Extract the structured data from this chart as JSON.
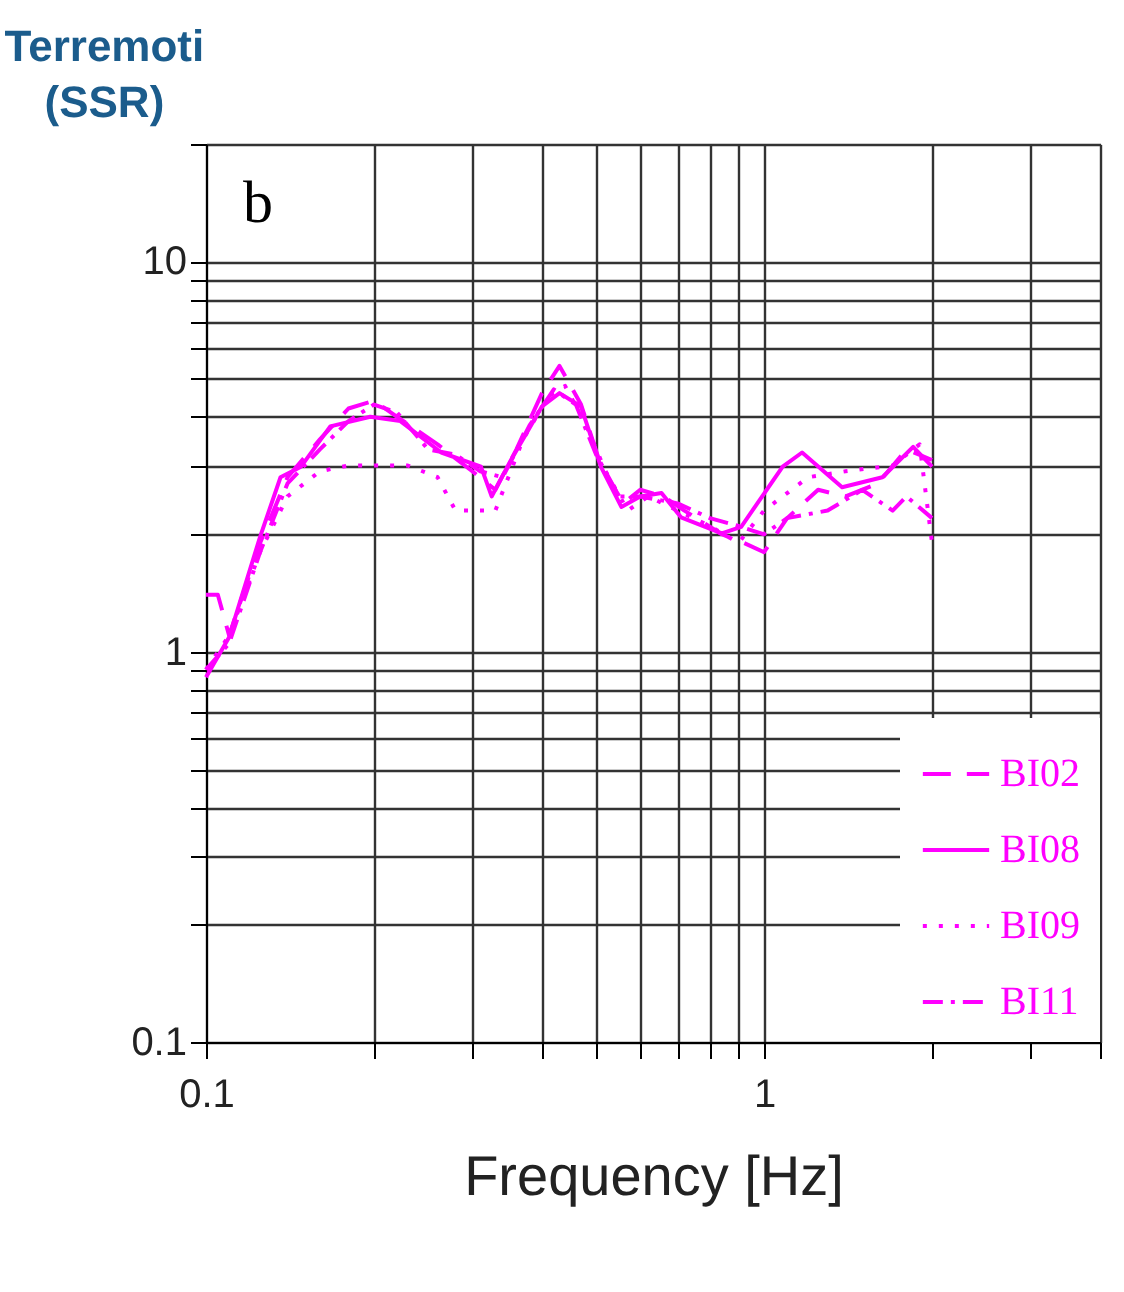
{
  "chart_data": {
    "type": "line",
    "title": "Terremoti (SSR)",
    "xlabel": "Frequency [Hz]",
    "annotations": [
      "b"
    ],
    "log": "xy",
    "grid": true,
    "legend": "bottom right",
    "xlim": [
      0.1,
      4
    ],
    "ylim": [
      0.1,
      20
    ],
    "xticks": [
      0.1,
      {
        "value": 0.2,
        "label": null
      },
      {
        "value": 0.3,
        "label": null
      },
      {
        "value": 0.4,
        "label": null
      },
      {
        "value": 0.5,
        "label": null
      },
      {
        "value": 0.6,
        "label": null
      },
      {
        "value": 0.7,
        "label": null
      },
      {
        "value": 0.8,
        "label": null
      },
      {
        "value": 0.9,
        "label": null
      },
      1,
      {
        "value": 2,
        "label": null
      },
      {
        "value": 3,
        "label": null
      },
      {
        "value": 4,
        "label": null
      }
    ],
    "yticks": [
      0.1,
      {
        "value": 0.2,
        "label": null
      },
      {
        "value": 0.3,
        "label": null
      },
      {
        "value": 0.4,
        "label": null
      },
      {
        "value": 0.5,
        "label": null
      },
      {
        "value": 0.6,
        "label": null
      },
      {
        "value": 0.7,
        "label": null
      },
      {
        "value": 0.8,
        "label": null
      },
      {
        "value": 0.9,
        "label": null
      },
      1,
      {
        "value": 2,
        "label": null
      },
      {
        "value": 3,
        "label": null
      },
      {
        "value": 4,
        "label": null
      },
      {
        "value": 5,
        "label": null
      },
      {
        "value": 6,
        "label": null
      },
      {
        "value": 7,
        "label": null
      },
      {
        "value": 8,
        "label": null
      },
      {
        "value": 9,
        "label": null
      },
      10,
      {
        "value": 20,
        "label": null
      }
    ],
    "series": [
      {
        "name": "BI02",
        "color": "#ff00ff",
        "line_style": "dashed",
        "x": [
          0.1,
          0.105,
          0.11,
          0.125,
          0.14,
          0.16,
          0.18,
          0.2,
          0.22,
          0.26,
          0.3,
          0.33,
          0.36,
          0.4,
          0.43,
          0.47,
          0.51,
          0.56,
          0.6,
          0.66,
          0.72,
          0.84,
          0.92,
          1.0,
          1.1,
          1.25,
          1.4,
          1.6,
          1.8,
          2.0
        ],
        "values": [
          1.4,
          1.4,
          1.1,
          1.9,
          2.8,
          3.5,
          4.2,
          4.4,
          4.0,
          3.4,
          2.9,
          2.6,
          3.3,
          4.6,
          5.4,
          4.3,
          3.0,
          2.4,
          2.6,
          2.5,
          2.3,
          2.0,
          1.9,
          1.8,
          2.2,
          2.6,
          2.5,
          2.7,
          3.3,
          3.1
        ]
      },
      {
        "name": "BI08",
        "color": "#ff00ff",
        "line_style": "solid",
        "x": [
          0.1,
          0.11,
          0.125,
          0.136,
          0.148,
          0.167,
          0.197,
          0.223,
          0.264,
          0.311,
          0.325,
          0.352,
          0.4,
          0.43,
          0.47,
          0.51,
          0.555,
          0.6,
          0.655,
          0.71,
          0.84,
          0.91,
          1.08,
          1.17,
          1.38,
          1.63,
          1.85,
          2.0
        ],
        "values": [
          0.86,
          1.09,
          1.97,
          2.8,
          2.98,
          3.78,
          4.0,
          3.9,
          3.24,
          2.98,
          2.5,
          3.1,
          4.25,
          4.6,
          4.25,
          2.98,
          2.35,
          2.5,
          2.55,
          2.21,
          2.01,
          2.09,
          2.98,
          3.24,
          2.64,
          2.8,
          3.35,
          2.98
        ]
      },
      {
        "name": "BI09",
        "color": "#ff00ff",
        "line_style": "dotted",
        "x": [
          0.1,
          0.11,
          0.125,
          0.14,
          0.16,
          0.18,
          0.2,
          0.23,
          0.26,
          0.28,
          0.3,
          0.33,
          0.37,
          0.41,
          0.44,
          0.48,
          0.52,
          0.57,
          0.62,
          0.7,
          0.8,
          0.9,
          1.0,
          1.2,
          1.4,
          1.7,
          1.9,
          2.0
        ],
        "values": [
          0.9,
          1.1,
          1.8,
          2.5,
          2.9,
          3.0,
          3.0,
          3.0,
          2.8,
          2.3,
          2.3,
          2.3,
          3.5,
          4.5,
          4.8,
          3.8,
          2.9,
          2.3,
          2.5,
          2.3,
          2.1,
          1.9,
          2.3,
          2.8,
          2.9,
          3.0,
          3.4,
          1.9
        ]
      },
      {
        "name": "BI11",
        "color": "#ff00ff",
        "line_style": "dashdot",
        "x": [
          0.1,
          0.11,
          0.125,
          0.14,
          0.16,
          0.18,
          0.2,
          0.22,
          0.25,
          0.28,
          0.31,
          0.34,
          0.38,
          0.42,
          0.46,
          0.5,
          0.55,
          0.6,
          0.7,
          0.8,
          0.9,
          1.0,
          1.1,
          1.3,
          1.5,
          1.7,
          1.8,
          2.0
        ],
        "values": [
          0.9,
          1.05,
          1.8,
          2.7,
          3.3,
          3.9,
          4.3,
          4.1,
          3.3,
          3.2,
          2.9,
          2.8,
          3.8,
          4.7,
          4.3,
          3.2,
          2.5,
          2.5,
          2.4,
          2.2,
          2.1,
          2.0,
          2.2,
          2.3,
          2.6,
          2.3,
          2.5,
          2.2
        ]
      }
    ]
  }
}
